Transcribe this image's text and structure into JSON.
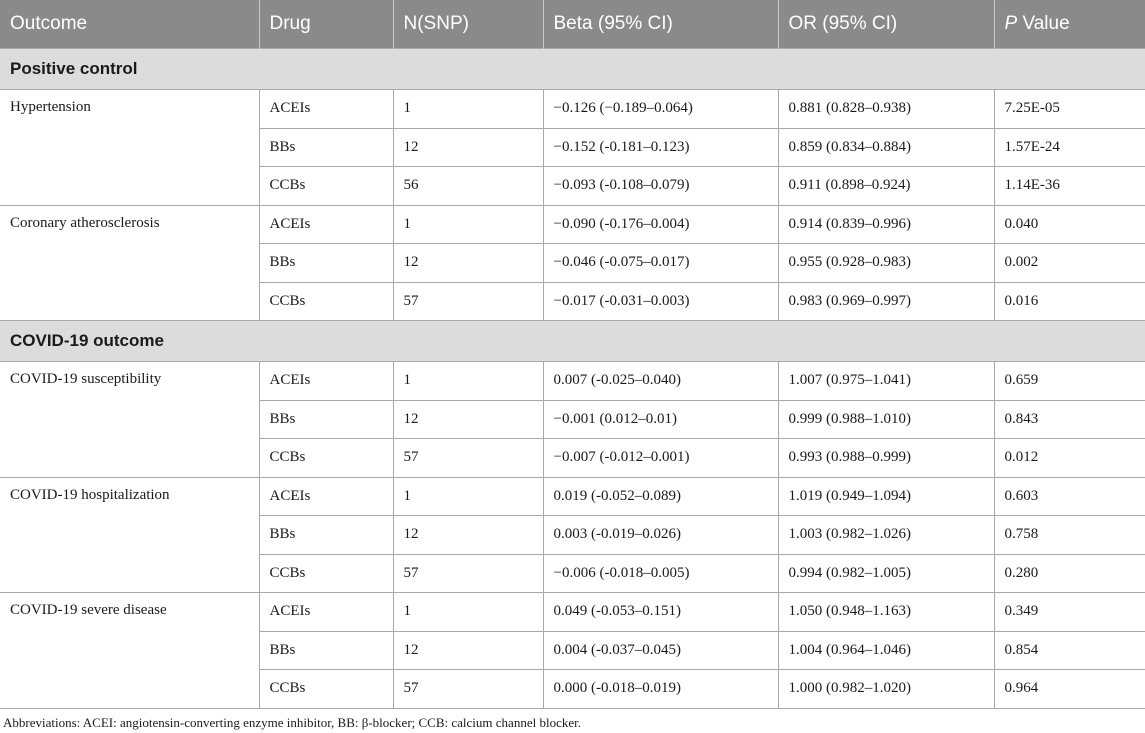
{
  "header": {
    "outcome": "Outcome",
    "drug": "Drug",
    "nsnp": "N(SNP)",
    "beta": "Beta (95% CI)",
    "or": "OR (95% CI)",
    "p_italic": "P",
    "p_rest": " Value"
  },
  "sections": [
    {
      "title": "Positive control",
      "groups": [
        {
          "outcome": "Hypertension",
          "rows": [
            {
              "drug": "ACEIs",
              "n": "1",
              "beta": "−0.126 (−0.189–0.064)",
              "or": "0.881 (0.828–0.938)",
              "p": "7.25E-05"
            },
            {
              "drug": "BBs",
              "n": "12",
              "beta": "−0.152 (-0.181–0.123)",
              "or": "0.859 (0.834–0.884)",
              "p": "1.57E-24"
            },
            {
              "drug": "CCBs",
              "n": "56",
              "beta": "−0.093 (-0.108–0.079)",
              "or": "0.911 (0.898–0.924)",
              "p": "1.14E-36"
            }
          ]
        },
        {
          "outcome": "Coronary atherosclerosis",
          "rows": [
            {
              "drug": "ACEIs",
              "n": "1",
              "beta": "−0.090 (-0.176–0.004)",
              "or": "0.914 (0.839–0.996)",
              "p": "0.040"
            },
            {
              "drug": "BBs",
              "n": "12",
              "beta": "−0.046 (-0.075–0.017)",
              "or": "0.955 (0.928–0.983)",
              "p": "0.002"
            },
            {
              "drug": "CCBs",
              "n": "57",
              "beta": "−0.017 (-0.031–0.003)",
              "or": "0.983 (0.969–0.997)",
              "p": "0.016"
            }
          ]
        }
      ]
    },
    {
      "title": "COVID-19 outcome",
      "groups": [
        {
          "outcome": "COVID-19 susceptibility",
          "rows": [
            {
              "drug": "ACEIs",
              "n": "1",
              "beta": "0.007 (-0.025–0.040)",
              "or": "1.007 (0.975–1.041)",
              "p": "0.659"
            },
            {
              "drug": "BBs",
              "n": "12",
              "beta": "−0.001 (0.012–0.01)",
              "or": "0.999 (0.988–1.010)",
              "p": "0.843"
            },
            {
              "drug": "CCBs",
              "n": "57",
              "beta": "−0.007 (-0.012–0.001)",
              "or": "0.993 (0.988–0.999)",
              "p": "0.012"
            }
          ]
        },
        {
          "outcome": "COVID-19 hospitalization",
          "rows": [
            {
              "drug": "ACEIs",
              "n": "1",
              "beta": "0.019 (-0.052–0.089)",
              "or": "1.019 (0.949–1.094)",
              "p": "0.603"
            },
            {
              "drug": "BBs",
              "n": "12",
              "beta": "0.003 (-0.019–0.026)",
              "or": "1.003 (0.982–1.026)",
              "p": "0.758"
            },
            {
              "drug": "CCBs",
              "n": "57",
              "beta": "−0.006 (-0.018–0.005)",
              "or": "0.994 (0.982–1.005)",
              "p": "0.280"
            }
          ]
        },
        {
          "outcome": "COVID-19 severe disease",
          "rows": [
            {
              "drug": "ACEIs",
              "n": "1",
              "beta": "0.049 (-0.053–0.151)",
              "or": "1.050 (0.948–1.163)",
              "p": "0.349"
            },
            {
              "drug": "BBs",
              "n": "12",
              "beta": "0.004 (-0.037–0.045)",
              "or": "1.004 (0.964–1.046)",
              "p": "0.854"
            },
            {
              "drug": "CCBs",
              "n": "57",
              "beta": "0.000 (-0.018–0.019)",
              "or": "1.000 (0.982–1.020)",
              "p": "0.964"
            }
          ]
        }
      ]
    }
  ],
  "footnote": "Abbreviations: ACEI: angiotensin-converting enzyme inhibitor, BB: β-blocker; CCB: calcium channel blocker."
}
